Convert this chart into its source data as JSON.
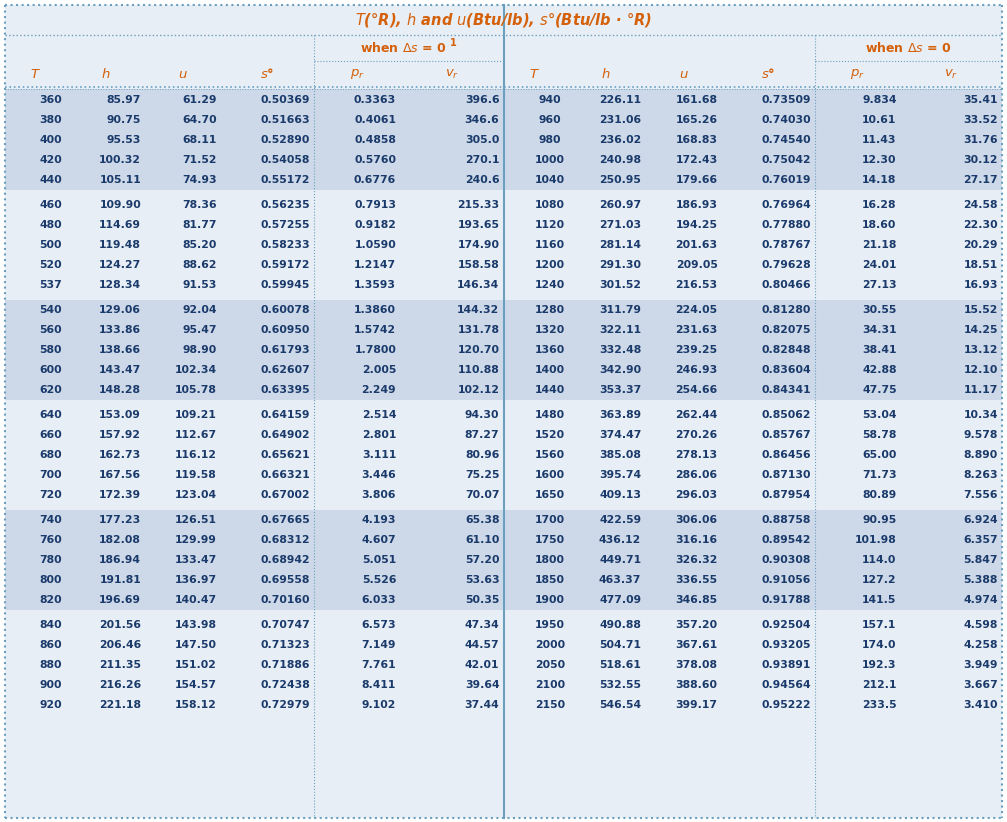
{
  "title": "T(°R), h and u(Btu/lb), s°(Btu/lb · °R)",
  "header1_text": "when Δs = 0",
  "header1_sup": "1",
  "header2_text": "when Δs = 0",
  "bg_color_light": "#cdd9e8",
  "bg_color_white": "#e8eef5",
  "text_color_orange": "#d4600a",
  "text_color_dark": "#1a3a6b",
  "border_color": "#6a9fc0",
  "rows_left": [
    [
      360,
      "85.97",
      "61.29",
      "0.50369",
      "0.3363",
      "396.6"
    ],
    [
      380,
      "90.75",
      "64.70",
      "0.51663",
      "0.4061",
      "346.6"
    ],
    [
      400,
      "95.53",
      "68.11",
      "0.52890",
      "0.4858",
      "305.0"
    ],
    [
      420,
      "100.32",
      "71.52",
      "0.54058",
      "0.5760",
      "270.1"
    ],
    [
      440,
      "105.11",
      "74.93",
      "0.55172",
      "0.6776",
      "240.6"
    ],
    null,
    [
      460,
      "109.90",
      "78.36",
      "0.56235",
      "0.7913",
      "215.33"
    ],
    [
      480,
      "114.69",
      "81.77",
      "0.57255",
      "0.9182",
      "193.65"
    ],
    [
      500,
      "119.48",
      "85.20",
      "0.58233",
      "1.0590",
      "174.90"
    ],
    [
      520,
      "124.27",
      "88.62",
      "0.59172",
      "1.2147",
      "158.58"
    ],
    [
      537,
      "128.34",
      "91.53",
      "0.59945",
      "1.3593",
      "146.34"
    ],
    null,
    [
      540,
      "129.06",
      "92.04",
      "0.60078",
      "1.3860",
      "144.32"
    ],
    [
      560,
      "133.86",
      "95.47",
      "0.60950",
      "1.5742",
      "131.78"
    ],
    [
      580,
      "138.66",
      "98.90",
      "0.61793",
      "1.7800",
      "120.70"
    ],
    [
      600,
      "143.47",
      "102.34",
      "0.62607",
      "2.005",
      "110.88"
    ],
    [
      620,
      "148.28",
      "105.78",
      "0.63395",
      "2.249",
      "102.12"
    ],
    null,
    [
      640,
      "153.09",
      "109.21",
      "0.64159",
      "2.514",
      "94.30"
    ],
    [
      660,
      "157.92",
      "112.67",
      "0.64902",
      "2.801",
      "87.27"
    ],
    [
      680,
      "162.73",
      "116.12",
      "0.65621",
      "3.111",
      "80.96"
    ],
    [
      700,
      "167.56",
      "119.58",
      "0.66321",
      "3.446",
      "75.25"
    ],
    [
      720,
      "172.39",
      "123.04",
      "0.67002",
      "3.806",
      "70.07"
    ],
    null,
    [
      740,
      "177.23",
      "126.51",
      "0.67665",
      "4.193",
      "65.38"
    ],
    [
      760,
      "182.08",
      "129.99",
      "0.68312",
      "4.607",
      "61.10"
    ],
    [
      780,
      "186.94",
      "133.47",
      "0.68942",
      "5.051",
      "57.20"
    ],
    [
      800,
      "191.81",
      "136.97",
      "0.69558",
      "5.526",
      "53.63"
    ],
    [
      820,
      "196.69",
      "140.47",
      "0.70160",
      "6.033",
      "50.35"
    ],
    null,
    [
      840,
      "201.56",
      "143.98",
      "0.70747",
      "6.573",
      "47.34"
    ],
    [
      860,
      "206.46",
      "147.50",
      "0.71323",
      "7.149",
      "44.57"
    ],
    [
      880,
      "211.35",
      "151.02",
      "0.71886",
      "7.761",
      "42.01"
    ],
    [
      900,
      "216.26",
      "154.57",
      "0.72438",
      "8.411",
      "39.64"
    ],
    [
      920,
      "221.18",
      "158.12",
      "0.72979",
      "9.102",
      "37.44"
    ]
  ],
  "rows_right": [
    [
      940,
      "226.11",
      "161.68",
      "0.73509",
      "9.834",
      "35.41"
    ],
    [
      960,
      "231.06",
      "165.26",
      "0.74030",
      "10.61",
      "33.52"
    ],
    [
      980,
      "236.02",
      "168.83",
      "0.74540",
      "11.43",
      "31.76"
    ],
    [
      1000,
      "240.98",
      "172.43",
      "0.75042",
      "12.30",
      "30.12"
    ],
    [
      1040,
      "250.95",
      "179.66",
      "0.76019",
      "14.18",
      "27.17"
    ],
    null,
    [
      1080,
      "260.97",
      "186.93",
      "0.76964",
      "16.28",
      "24.58"
    ],
    [
      1120,
      "271.03",
      "194.25",
      "0.77880",
      "18.60",
      "22.30"
    ],
    [
      1160,
      "281.14",
      "201.63",
      "0.78767",
      "21.18",
      "20.29"
    ],
    [
      1200,
      "291.30",
      "209.05",
      "0.79628",
      "24.01",
      "18.51"
    ],
    [
      1240,
      "301.52",
      "216.53",
      "0.80466",
      "27.13",
      "16.93"
    ],
    null,
    [
      1280,
      "311.79",
      "224.05",
      "0.81280",
      "30.55",
      "15.52"
    ],
    [
      1320,
      "322.11",
      "231.63",
      "0.82075",
      "34.31",
      "14.25"
    ],
    [
      1360,
      "332.48",
      "239.25",
      "0.82848",
      "38.41",
      "13.12"
    ],
    [
      1400,
      "342.90",
      "246.93",
      "0.83604",
      "42.88",
      "12.10"
    ],
    [
      1440,
      "353.37",
      "254.66",
      "0.84341",
      "47.75",
      "11.17"
    ],
    null,
    [
      1480,
      "363.89",
      "262.44",
      "0.85062",
      "53.04",
      "10.34"
    ],
    [
      1520,
      "374.47",
      "270.26",
      "0.85767",
      "58.78",
      "9.578"
    ],
    [
      1560,
      "385.08",
      "278.13",
      "0.86456",
      "65.00",
      "8.890"
    ],
    [
      1600,
      "395.74",
      "286.06",
      "0.87130",
      "71.73",
      "8.263"
    ],
    [
      1650,
      "409.13",
      "296.03",
      "0.87954",
      "80.89",
      "7.556"
    ],
    null,
    [
      1700,
      "422.59",
      "306.06",
      "0.88758",
      "90.95",
      "6.924"
    ],
    [
      1750,
      "436.12",
      "316.16",
      "0.89542",
      "101.98",
      "6.357"
    ],
    [
      1800,
      "449.71",
      "326.32",
      "0.90308",
      "114.0",
      "5.847"
    ],
    [
      1850,
      "463.37",
      "336.55",
      "0.91056",
      "127.2",
      "5.388"
    ],
    [
      1900,
      "477.09",
      "346.85",
      "0.91788",
      "141.5",
      "4.974"
    ],
    null,
    [
      1950,
      "490.88",
      "357.20",
      "0.92504",
      "157.1",
      "4.598"
    ],
    [
      2000,
      "504.71",
      "367.61",
      "0.93205",
      "174.0",
      "4.258"
    ],
    [
      2050,
      "518.61",
      "378.08",
      "0.93891",
      "192.3",
      "3.949"
    ],
    [
      2100,
      "532.55",
      "388.60",
      "0.94564",
      "212.1",
      "3.667"
    ],
    [
      2150,
      "546.54",
      "399.17",
      "0.95222",
      "233.5",
      "3.410"
    ]
  ]
}
